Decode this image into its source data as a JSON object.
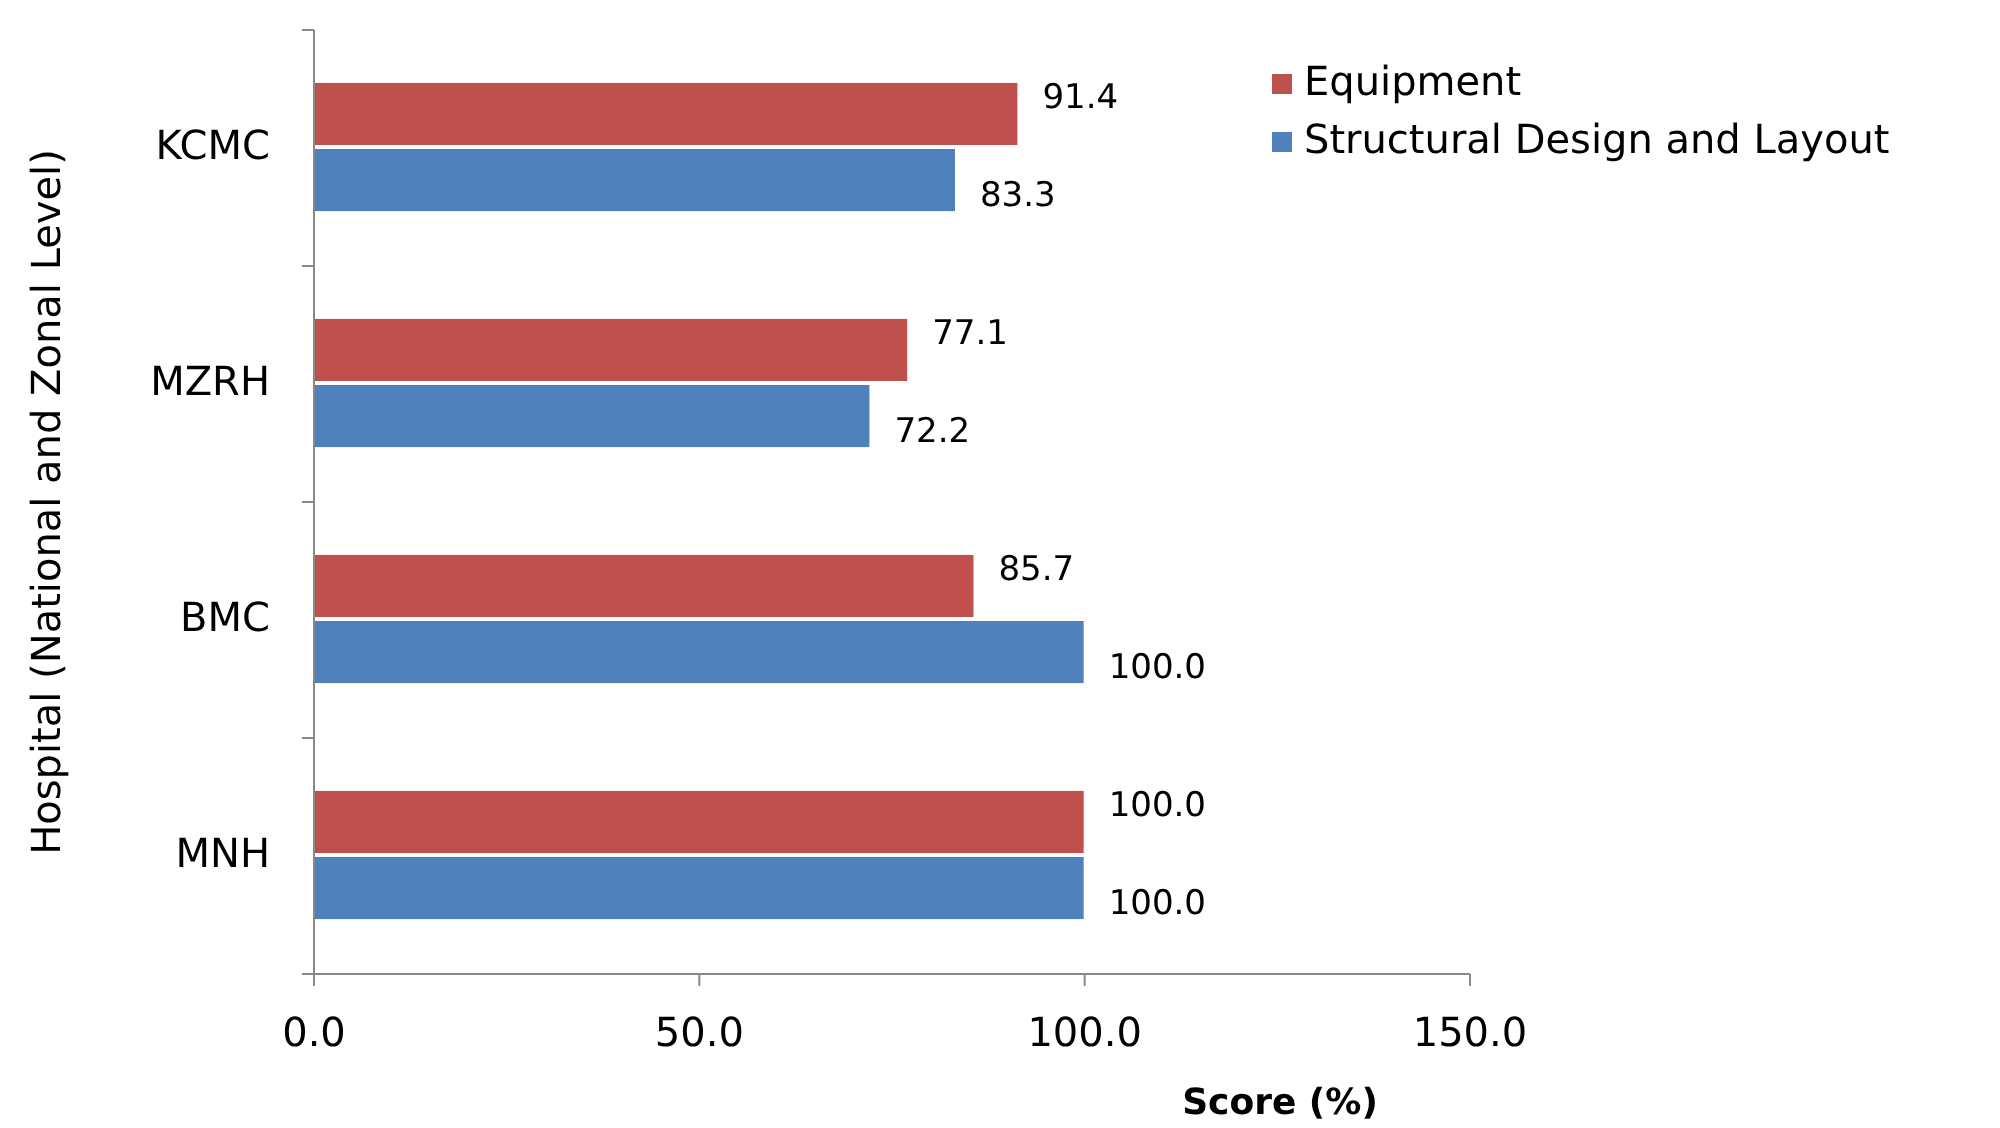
{
  "chart_data": {
    "type": "bar",
    "orientation": "horizontal",
    "xlabel": "Score (%)",
    "ylabel": "Hospital (National and Zonal Level)",
    "categories": [
      "KCMC",
      "MZRH",
      "BMC",
      "MNH"
    ],
    "series": [
      {
        "name": "Equipment",
        "color": "#c0504d",
        "values": [
          91.4,
          77.1,
          85.7,
          100.0
        ],
        "value_labels": [
          "91.4",
          "77.1",
          "85.7",
          "100.0"
        ]
      },
      {
        "name": "Structural Design and Layout",
        "color": "#4f81bd",
        "values": [
          83.3,
          72.2,
          100.0,
          100.0
        ],
        "value_labels": [
          "83.3",
          "72.2",
          "100.0",
          "100.0"
        ]
      }
    ],
    "xlim": [
      0,
      150
    ],
    "xticks": [
      {
        "value": 0,
        "label": "0.0"
      },
      {
        "value": 50,
        "label": "50.0"
      },
      {
        "value": 100,
        "label": "100.0"
      },
      {
        "value": 150,
        "label": "150.0"
      }
    ],
    "legend": "top right",
    "grid": false
  }
}
